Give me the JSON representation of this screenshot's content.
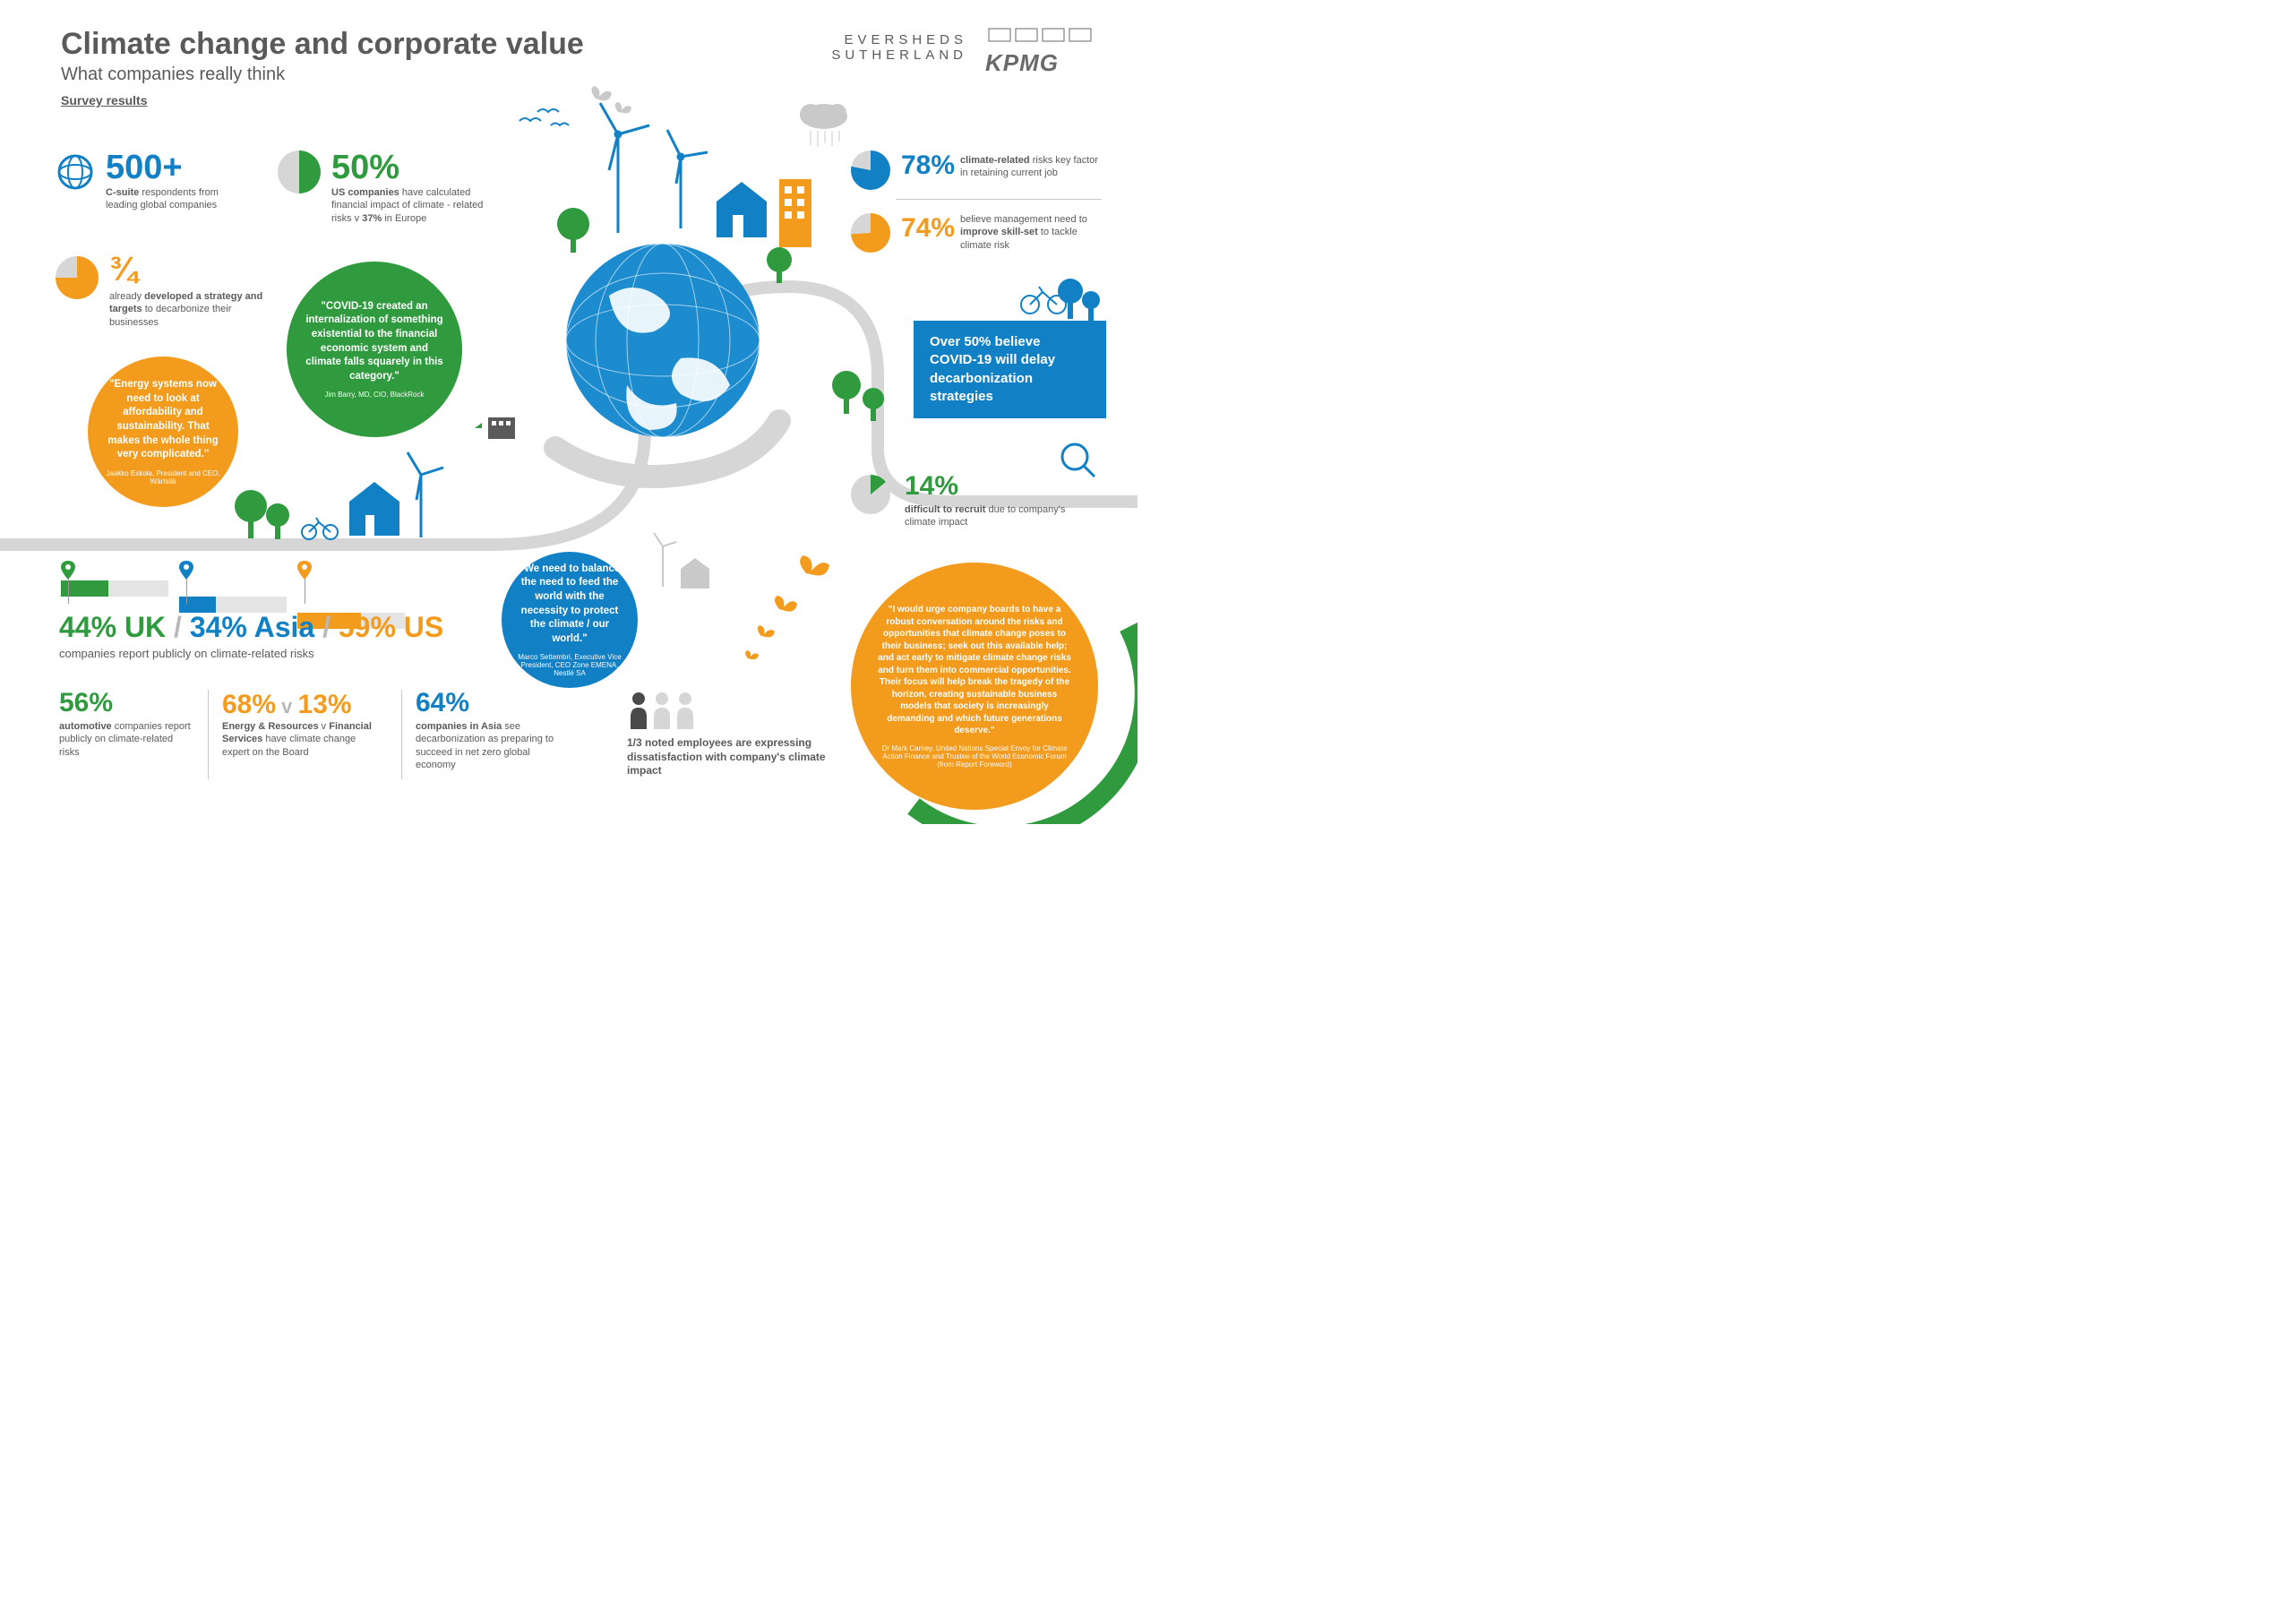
{
  "header": {
    "title": "Climate change and corporate value",
    "subtitle": "What companies really think",
    "survey_link": "Survey results",
    "logo1_line1": "EVERSHEDS",
    "logo1_line2": "SUTHERLAND",
    "logo2": "KPMG"
  },
  "colors": {
    "blue": "#1280c4",
    "green": "#2f9b3e",
    "orange": "#f29b1d",
    "grey": "#d6d6d6",
    "darkgrey": "#5a5a5a",
    "lightgrey": "#e4e4e4"
  },
  "stats": {
    "s1": {
      "value": "500+",
      "color": "#1280c4",
      "desc": "<b>C-suite</b> respondents from leading global companies",
      "icon": "globe-outline-icon"
    },
    "s2": {
      "value": "50%",
      "color": "#2f9b3e",
      "pct": 50,
      "desc": "<b>US companies</b> have calculated financial impact of climate - related risks v <b>37%</b> in Europe"
    },
    "s3": {
      "value": "¾",
      "color": "#f29b1d",
      "pct": 75,
      "desc": "already <b>developed a strategy and targets</b> to decarbonize their businesses"
    },
    "s4": {
      "value": "78%",
      "color": "#1280c4",
      "pct": 78,
      "desc": "<b>climate-related</b> risks key factor in retaining current job"
    },
    "s5": {
      "value": "74%",
      "color": "#f29b1d",
      "pct": 74,
      "desc": "believe management need to <b>improve skill-set</b> to tackle climate risk"
    },
    "s6": {
      "value": "14%",
      "color": "#2f9b3e",
      "pct": 14,
      "desc": "<b>difficult to recruit</b> due to company's climate impact"
    }
  },
  "covid_box": "Over 50% believe COVID-19 will delay decarbonization strategies",
  "quotes": {
    "q1": {
      "text": "\"Energy systems now need to look at affordability and sustainability. That makes the whole thing very complicated.\"",
      "attr": "Jaakko Eskola, President and CEO, Wärtsilä",
      "bg": "#f29b1d"
    },
    "q2": {
      "text": "\"COVID-19 created an internalization of something existential to the financial economic system and climate falls squarely in this category.\"",
      "attr": "Jim Barry, MD, CIO, BlackRock",
      "bg": "#2f9b3e"
    },
    "q3": {
      "text": "\"We need to balance the need to feed the world with the necessity to protect the climate / our world.\"",
      "attr": "Marco Settembri, Executive Vice President, CEO Zone EMENA, Nestlé SA",
      "bg": "#1280c4"
    },
    "q4": {
      "text": "\"I would urge company boards to have a robust conversation around the risks and opportunities that climate change poses to their business; seek out this available help; and act early to mitigate climate change risks and turn them into commercial opportunities. Their focus will help break the tragedy of the horizon, creating sustainable business models that society is increasingly demanding and which future generations deserve.\"",
      "attr": "Dr Mark Carney, United Nations Special Envoy for Climate Action Finance and Trustee of the World Economic Forum (from Report Foreword)",
      "bg": "#f29b1d"
    }
  },
  "regions": {
    "r1": {
      "label": "UK",
      "value": "44%",
      "pct": 44,
      "color": "#2f9b3e"
    },
    "r2": {
      "label": "Asia",
      "value": "34%",
      "pct": 34,
      "color": "#1280c4"
    },
    "r3": {
      "label": "US",
      "value": "59%",
      "pct": 59,
      "color": "#f29b1d"
    },
    "caption": "companies report publicly on climate-related risks"
  },
  "bottom": {
    "b1": {
      "value": "56%",
      "color": "#2f9b3e",
      "desc": "<b>automotive</b> companies report publicly on climate-related risks"
    },
    "b2": {
      "v1": "68%",
      "v2": "13%",
      "sep": " v ",
      "color": "#f29b1d",
      "desc": "<b>Energy & Resources</b> v <b>Financial Services</b> have climate change expert on the Board"
    },
    "b3": {
      "value": "64%",
      "color": "#1280c4",
      "desc": "<b>companies in Asia</b> see decarbonization as preparing to succeed in net zero global economy"
    },
    "b4": {
      "desc": "<b>1/3 noted employees are expressing dissatisfaction with company's climate impact</b>"
    }
  }
}
